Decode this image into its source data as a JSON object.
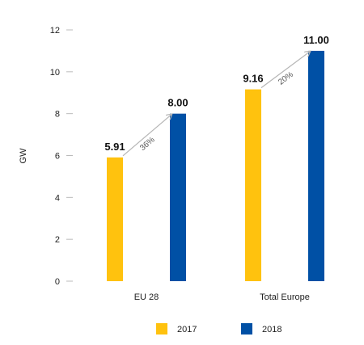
{
  "chart_data": {
    "type": "bar",
    "ylabel": "GW",
    "ylim": [
      0,
      12
    ],
    "yticks": [
      0,
      2,
      4,
      6,
      8,
      10,
      12
    ],
    "categories": [
      "EU 28",
      "Total Europe"
    ],
    "series": [
      {
        "name": "2017",
        "color": "#FFC20E",
        "values": [
          5.91,
          9.16
        ],
        "labels": [
          "5.91",
          "9.16"
        ]
      },
      {
        "name": "2018",
        "color": "#0050A5",
        "values": [
          8.0,
          11.0
        ],
        "labels": [
          "8.00",
          "11.00"
        ]
      }
    ],
    "annotations": [
      {
        "category": "EU 28",
        "text": "36%"
      },
      {
        "category": "Total Europe",
        "text": "20%"
      }
    ],
    "grid": false,
    "legend_position": "bottom"
  }
}
